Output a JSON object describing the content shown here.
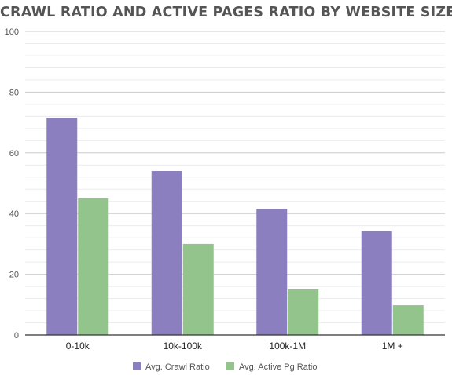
{
  "chart_data": {
    "type": "bar",
    "title": "CRAWL RATIO AND ACTIVE PAGES RATIO BY WEBSITE SIZE",
    "categories": [
      "0-10k",
      "10k-100k",
      "100k-1M",
      "1M +"
    ],
    "series": [
      {
        "name": "Avg. Crawl Ratio",
        "values": [
          71.5,
          54,
          41.5,
          34.2
        ],
        "color": "#8c7fbf"
      },
      {
        "name": "Avg. Active Pg Ratio",
        "values": [
          45,
          30,
          15,
          9.8
        ],
        "color": "#93c48b"
      }
    ],
    "ylim": [
      0,
      100
    ],
    "yticks": [
      0,
      20,
      40,
      60,
      80,
      100
    ],
    "grid": true,
    "legend": "bottom"
  }
}
